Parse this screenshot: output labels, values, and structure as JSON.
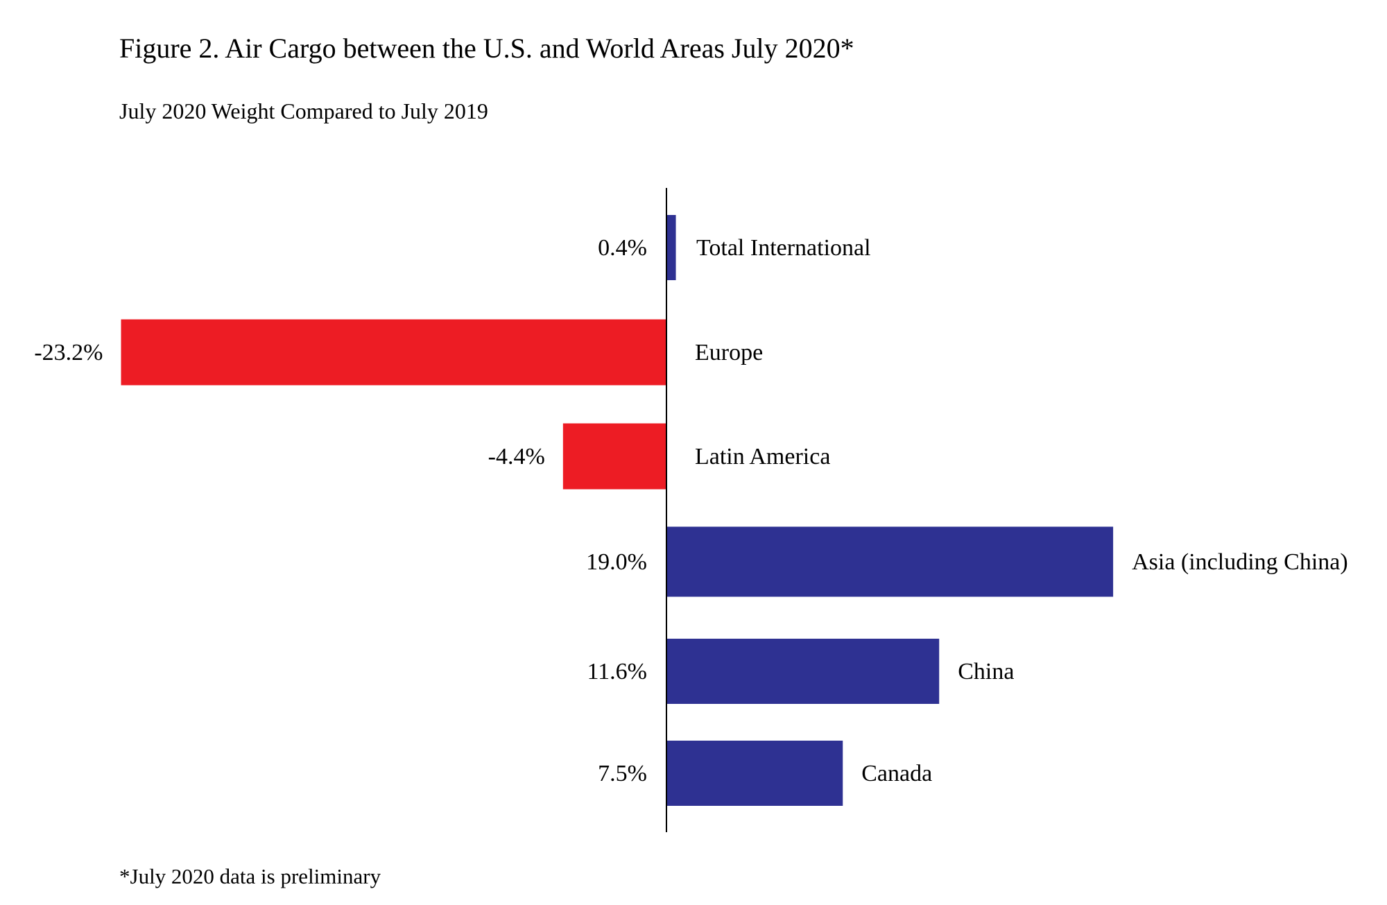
{
  "chart_data": {
    "type": "bar",
    "orientation": "horizontal",
    "title": "Figure 2. Air Cargo between the U.S. and World Areas July 2020*",
    "subtitle": "July 2020 Weight Compared to July 2019",
    "footnote": "*July 2020 data is preliminary",
    "unit": "%",
    "categories": [
      "Total International",
      "Europe",
      "Latin America",
      "Asia (including China)",
      "China",
      "Canada"
    ],
    "values": [
      0.4,
      -23.2,
      -4.4,
      19.0,
      11.6,
      7.5
    ],
    "data_labels": [
      "0.4%",
      "-23.2%",
      "-4.4%",
      "19.0%",
      "11.6%",
      "7.5%"
    ],
    "colors": {
      "positive": "#2e3192",
      "negative": "#ed1c24"
    },
    "grid": false,
    "legend": "none"
  }
}
